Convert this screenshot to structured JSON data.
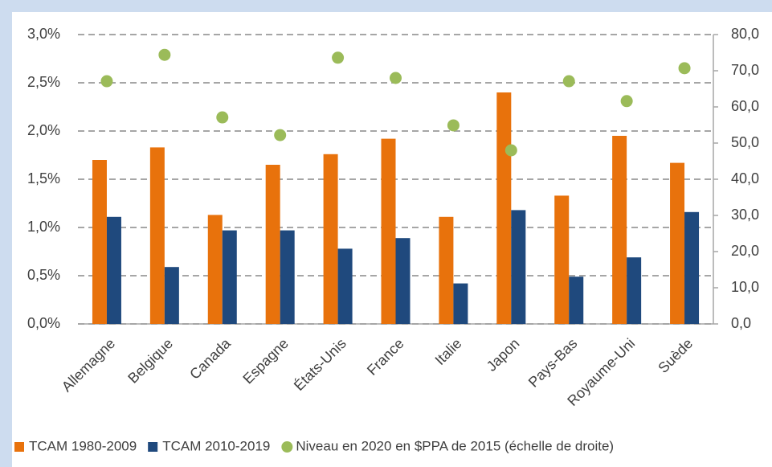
{
  "chart_data": {
    "type": "bar",
    "categories": [
      "Allemagne",
      "Belgique",
      "Canada",
      "Espagne",
      "États-Unis",
      "France",
      "Italie",
      "Japon",
      "Pays-Bas",
      "Royaume-Uni",
      "Suède"
    ],
    "series": [
      {
        "name": "TCAM 1980-2009",
        "color": "#e8720c",
        "type": "bar",
        "values": [
          1.7,
          1.83,
          1.13,
          1.65,
          1.76,
          1.92,
          1.11,
          2.4,
          1.33,
          1.95,
          1.67
        ]
      },
      {
        "name": "TCAM 2010-2019",
        "color": "#1f497d",
        "type": "bar",
        "values": [
          1.11,
          0.59,
          0.97,
          0.97,
          0.78,
          0.89,
          0.42,
          1.18,
          0.49,
          0.69,
          1.16
        ]
      },
      {
        "name": "Niveau en 2020 en $PPA de 2015 (échelle de droite)",
        "color": "#9bbb59",
        "type": "scatter",
        "axis": "y2",
        "values": [
          67.1,
          74.4,
          57.1,
          52.2,
          73.6,
          68.0,
          54.9,
          48.0,
          67.1,
          61.6,
          70.7
        ]
      }
    ],
    "ylim": [
      0,
      3.0
    ],
    "yticks": [
      {
        "value": 0,
        "label": "0,0%"
      },
      {
        "value": 0.5,
        "label": "0,5%"
      },
      {
        "value": 1.0,
        "label": "1,0%"
      },
      {
        "value": 1.5,
        "label": "1,5%"
      },
      {
        "value": 2.0,
        "label": "2,0%"
      },
      {
        "value": 2.5,
        "label": "2,5%"
      },
      {
        "value": 3.0,
        "label": "3,0%"
      }
    ],
    "y2lim": [
      0,
      80
    ],
    "y2ticks": [
      {
        "value": 0,
        "label": "0,0"
      },
      {
        "value": 10,
        "label": "10,0"
      },
      {
        "value": 20,
        "label": "20,0"
      },
      {
        "value": 30,
        "label": "30,0"
      },
      {
        "value": 40,
        "label": "40,0"
      },
      {
        "value": 50,
        "label": "50,0"
      },
      {
        "value": 60,
        "label": "60,0"
      },
      {
        "value": 70,
        "label": "70,0"
      },
      {
        "value": 80,
        "label": "80,0"
      }
    ],
    "grid": true,
    "legend": "bottom"
  }
}
